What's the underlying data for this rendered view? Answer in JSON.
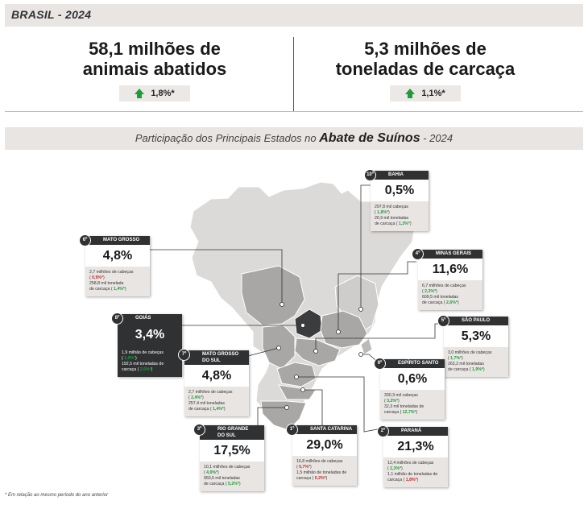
{
  "header": {
    "title": "BRASIL - 2024"
  },
  "kpis": [
    {
      "line1": "58,1 milhões de",
      "line2": "animais abatidos",
      "delta": "1,8%*"
    },
    {
      "line1": "5,3 milhões de",
      "line2": "toneladas de carcaça",
      "delta": "1,1%*"
    }
  ],
  "subtitle": {
    "prefix": "Participação dos Principais Estados no ",
    "bold": "Abate de Suínos",
    "suffix": "  - 2024"
  },
  "colors": {
    "dark": "#2f3133",
    "up": "#1e9b3a",
    "down": "#c62828",
    "panel": "#e8e5e3"
  },
  "states": {
    "bahia": {
      "rank": "10º",
      "name": "BAHIA",
      "pct": "0,5%",
      "l1": "297,8 mil cabeças",
      "v1": "1,8%*",
      "l2": "26,9 mil toneladas",
      "l3": "de carcaça",
      "v2": "1,3%*"
    },
    "minas": {
      "rank": "4º",
      "name": "MINAS GERAIS",
      "pct": "11,6%",
      "l1": "6,7 milhões de cabeças",
      "v1": "2,3%*",
      "l2": "609,5 mil toneladas",
      "l3": "de carcaça",
      "v2": "2,6%*"
    },
    "mt": {
      "rank": "6º",
      "name": "MATO GROSSO",
      "pct": "4,8%",
      "l1": "2,7 milhões de cabeças",
      "v1": "0,9%*",
      "l2": "258,8 mil tonelada",
      "l3": "de carcaça",
      "v2": "1,4%*"
    },
    "goias": {
      "rank": "8º",
      "name": "GOIÁS",
      "pct": "3,4%",
      "l1": "1,9 milhão de cabeças",
      "v1": "1,0%*",
      "l2": "192,5 mil toneladas de",
      "l3": "carcaça",
      "v2": "2,6%*"
    },
    "sp": {
      "rank": "5º",
      "name": "SÃO PAULO",
      "pct": "5,3%",
      "l1": "3,0 milhões de cabeças",
      "v1": "1,7%*",
      "l2": "263,2 mil toneladas",
      "l3": "de carcaça",
      "v2": "1,9%*"
    },
    "ms": {
      "rank": "7º",
      "name": "MATO GROSSO",
      "name2": "DO SUL",
      "pct": "4,8%",
      "l1": "2,7 milhões de cabeças",
      "v1": "2,4%*",
      "l2": "257,4 mil toneladas",
      "l3": "de carcaça",
      "v2": "1,4%*"
    },
    "es": {
      "rank": "9º",
      "name": "ESPÍRITO SANTO",
      "pct": "0,6%",
      "l1": "330,3 mil cabeças",
      "v1": "3,2%*",
      "l2": "32,3 mil toneladas de",
      "l3": "carcaça",
      "v2": "12,7%*"
    },
    "rs": {
      "rank": "3º",
      "name": "RIO GRANDE",
      "name2": "DO SUL",
      "pct": "17,5%",
      "l1": "10,1 milhões de cabeças",
      "v1": "4,9%*",
      "l2": "950,5 mil toneladas",
      "l3": "de carcaça",
      "v2": "5,2%*"
    },
    "sc": {
      "rank": "1º",
      "name": "SANTA CATARINA",
      "pct": "29,0%",
      "l1": "16,8 milhões de cabeças",
      "v1": "0,7%*",
      "l2": "1,5 milhão de toneladas de",
      "l3": "carcaça",
      "v2": "0,2%*"
    },
    "pr": {
      "rank": "2º",
      "name": "PARANÁ",
      "pct": "21,3%",
      "l1": "12,4 milhões de cabeças",
      "v1": "2,3%*",
      "l2": "1,1 milhão de toneladas de",
      "l3": "carcaça",
      "v2": "1,8%*"
    }
  },
  "footnote": "* Em relação ao mesmo período do ano anterior"
}
